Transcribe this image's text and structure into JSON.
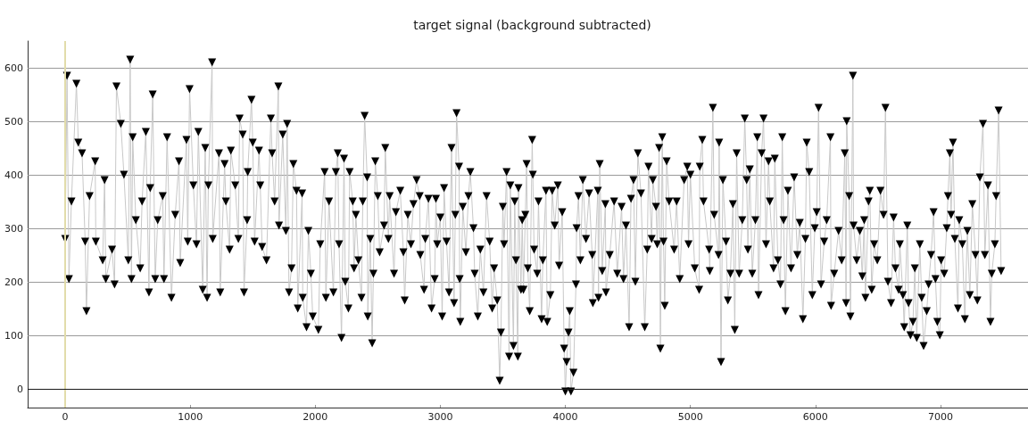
{
  "chart_data": {
    "type": "line",
    "title": "target signal (background subtracted)",
    "x": [
      0,
      15,
      30,
      50,
      90,
      105,
      135,
      160,
      170,
      195,
      240,
      245,
      300,
      315,
      325,
      375,
      395,
      410,
      445,
      470,
      505,
      520,
      530,
      540,
      565,
      600,
      615,
      645,
      670,
      680,
      700,
      720,
      740,
      780,
      790,
      815,
      850,
      880,
      910,
      920,
      970,
      980,
      995,
      1025,
      1050,
      1065,
      1100,
      1120,
      1135,
      1145,
      1175,
      1180,
      1230,
      1240,
      1275,
      1285,
      1315,
      1325,
      1360,
      1385,
      1395,
      1420,
      1430,
      1455,
      1460,
      1490,
      1500,
      1515,
      1550,
      1560,
      1575,
      1610,
      1645,
      1655,
      1675,
      1705,
      1710,
      1740,
      1765,
      1775,
      1790,
      1810,
      1825,
      1850,
      1860,
      1895,
      1900,
      1930,
      1945,
      1965,
      1980,
      2025,
      2040,
      2075,
      2085,
      2110,
      2145,
      2165,
      2180,
      2190,
      2210,
      2230,
      2240,
      2265,
      2275,
      2300,
      2310,
      2325,
      2345,
      2370,
      2380,
      2395,
      2415,
      2420,
      2440,
      2455,
      2465,
      2480,
      2500,
      2515,
      2550,
      2560,
      2585,
      2595,
      2630,
      2645,
      2680,
      2705,
      2715,
      2740,
      2765,
      2785,
      2810,
      2835,
      2840,
      2870,
      2880,
      2905,
      2930,
      2955,
      2965,
      2975,
      3000,
      3015,
      3030,
      3050,
      3070,
      3090,
      3110,
      3120,
      3130,
      3150,
      3155,
      3160,
      3180,
      3205,
      3225,
      3240,
      3265,
      3275,
      3300,
      3320,
      3345,
      3370,
      3395,
      3415,
      3430,
      3455,
      3475,
      3485,
      3500,
      3510,
      3530,
      3550,
      3560,
      3585,
      3595,
      3605,
      3620,
      3625,
      3645,
      3655,
      3665,
      3680,
      3690,
      3700,
      3715,
      3735,
      3740,
      3750,
      3775,
      3785,
      3810,
      3820,
      3845,
      3855,
      3880,
      3895,
      3915,
      3940,
      3950,
      3975,
      3990,
      4000,
      4010,
      4025,
      4035,
      4045,
      4065,
      4085,
      4090,
      4105,
      4120,
      4140,
      4165,
      4190,
      4215,
      4220,
      4260,
      4265,
      4275,
      4295,
      4320,
      4325,
      4355,
      4390,
      4415,
      4450,
      4465,
      4485,
      4510,
      4525,
      4545,
      4560,
      4580,
      4605,
      4635,
      4655,
      4665,
      4690,
      4700,
      4725,
      4735,
      4750,
      4760,
      4775,
      4785,
      4795,
      4810,
      4830,
      4870,
      4890,
      4915,
      4950,
      4975,
      4985,
      5000,
      5035,
      5070,
      5075,
      5095,
      5105,
      5150,
      5155,
      5180,
      5190,
      5225,
      5230,
      5245,
      5260,
      5285,
      5300,
      5320,
      5340,
      5355,
      5370,
      5390,
      5415,
      5435,
      5450,
      5460,
      5475,
      5495,
      5520,
      5535,
      5545,
      5570,
      5585,
      5605,
      5625,
      5635,
      5665,
      5675,
      5700,
      5720,
      5735,
      5745,
      5760,
      5780,
      5805,
      5830,
      5855,
      5875,
      5900,
      5920,
      5930,
      5950,
      5975,
      5995,
      6010,
      6025,
      6045,
      6070,
      6090,
      6120,
      6125,
      6150,
      6185,
      6210,
      6235,
      6245,
      6250,
      6270,
      6280,
      6300,
      6305,
      6330,
      6355,
      6375,
      6390,
      6400,
      6425,
      6435,
      6450,
      6470,
      6495,
      6520,
      6545,
      6560,
      6580,
      6605,
      6625,
      6640,
      6665,
      6675,
      6700,
      6710,
      6735,
      6745,
      6760,
      6780,
      6795,
      6810,
      6835,
      6850,
      6865,
      6890,
      6905,
      6925,
      6945,
      6960,
      6975,
      6995,
      7005,
      7030,
      7050,
      7060,
      7075,
      7085,
      7100,
      7115,
      7140,
      7150,
      7175,
      7195,
      7215,
      7235,
      7255,
      7280,
      7295,
      7315,
      7340,
      7355,
      7380,
      7400,
      7410,
      7435,
      7445,
      7465,
      7485
    ],
    "series": [
      {
        "color": "#c8c8c8",
        "marker": "none",
        "values": [
          280,
          585,
          205,
          350,
          570,
          460,
          440,
          275,
          145,
          360,
          425,
          275,
          240,
          390,
          205,
          260,
          195,
          565,
          495,
          400,
          240,
          615,
          205,
          470,
          315,
          225,
          350,
          480,
          180,
          375,
          550,
          205,
          315,
          360,
          205,
          470,
          170,
          325,
          425,
          235,
          465,
          275,
          560,
          380,
          270,
          480,
          185,
          450,
          170,
          380,
          610,
          280,
          440,
          180,
          420,
          350,
          260,
          445,
          380,
          280,
          505,
          475,
          180,
          315,
          405,
          540,
          460,
          275,
          445,
          380,
          265,
          240,
          505,
          440,
          350,
          565,
          305,
          475,
          295,
          495,
          180,
          225,
          420,
          370,
          150,
          365,
          170,
          115,
          295,
          215,
          135,
          110,
          270,
          405,
          170,
          350,
          180,
          405,
          440,
          270,
          95,
          430,
          200,
          150,
          405,
          350,
          225,
          325,
          240,
          170,
          350,
          510,
          395,
          135,
          280,
          85,
          215,
          425,
          360,
          255,
          305,
          450,
          280,
          360,
          215,
          330,
          370,
          255,
          165,
          325,
          270,
          345,
          390,
          360,
          250,
          185,
          280,
          355,
          150,
          205,
          355,
          270,
          320,
          135,
          375,
          275,
          180,
          450,
          160,
          325,
          515,
          415,
          205,
          125,
          340,
          255,
          360,
          405,
          300,
          215,
          135,
          260,
          180,
          360,
          275,
          150,
          225,
          165,
          15,
          105,
          340,
          270,
          405,
          60,
          380,
          80,
          350,
          240,
          60,
          375,
          185,
          315,
          185,
          325,
          420,
          225,
          145,
          465,
          400,
          260,
          215,
          350,
          130,
          240,
          370,
          125,
          175,
          370,
          305,
          380,
          230,
          330,
          75,
          -5,
          50,
          105,
          145,
          -5,
          30,
          195,
          300,
          360,
          240,
          390,
          280,
          365,
          250,
          160,
          370,
          170,
          420,
          220,
          345,
          180,
          250,
          350,
          215,
          340,
          205,
          305,
          115,
          355,
          390,
          200,
          440,
          365,
          115,
          260,
          415,
          280,
          390,
          340,
          270,
          450,
          75,
          470,
          275,
          155,
          425,
          350,
          260,
          350,
          205,
          390,
          415,
          270,
          400,
          225,
          185,
          415,
          465,
          350,
          260,
          220,
          525,
          325,
          250,
          460,
          50,
          390,
          275,
          165,
          215,
          345,
          110,
          440,
          215,
          315,
          505,
          390,
          260,
          410,
          215,
          315,
          470,
          175,
          440,
          505,
          270,
          425,
          350,
          225,
          430,
          240,
          195,
          470,
          315,
          145,
          370,
          225,
          395,
          250,
          310,
          130,
          280,
          460,
          405,
          175,
          300,
          330,
          525,
          195,
          275,
          315,
          470,
          155,
          215,
          295,
          240,
          440,
          160,
          500,
          360,
          135,
          585,
          305,
          240,
          295,
          210,
          315,
          170,
          350,
          370,
          185,
          270,
          240,
          370,
          325,
          525,
          200,
          160,
          320,
          225,
          185,
          270,
          175,
          115,
          305,
          160,
          100,
          125,
          225,
          95,
          270,
          170,
          80,
          145,
          195,
          250,
          330,
          205,
          125,
          100,
          240,
          215,
          300,
          360,
          440,
          325,
          460,
          280,
          150,
          315,
          270,
          130,
          295,
          175,
          345,
          250,
          165,
          395,
          495,
          250,
          380,
          125,
          215,
          270,
          360,
          520,
          220
        ]
      },
      {
        "type": "scatter",
        "color": "#000000",
        "marker": "triangle",
        "values": [
          280,
          585,
          205,
          350,
          570,
          460,
          440,
          275,
          145,
          360,
          425,
          275,
          240,
          390,
          205,
          260,
          195,
          565,
          495,
          400,
          240,
          615,
          205,
          470,
          315,
          225,
          350,
          480,
          180,
          375,
          550,
          205,
          315,
          360,
          205,
          470,
          170,
          325,
          425,
          235,
          465,
          275,
          560,
          380,
          270,
          480,
          185,
          450,
          170,
          380,
          610,
          280,
          440,
          180,
          420,
          350,
          260,
          445,
          380,
          280,
          505,
          475,
          180,
          315,
          405,
          540,
          460,
          275,
          445,
          380,
          265,
          240,
          505,
          440,
          350,
          565,
          305,
          475,
          295,
          495,
          180,
          225,
          420,
          370,
          150,
          365,
          170,
          115,
          295,
          215,
          135,
          110,
          270,
          405,
          170,
          350,
          180,
          405,
          440,
          270,
          95,
          430,
          200,
          150,
          405,
          350,
          225,
          325,
          240,
          170,
          350,
          510,
          395,
          135,
          280,
          85,
          215,
          425,
          360,
          255,
          305,
          450,
          280,
          360,
          215,
          330,
          370,
          255,
          165,
          325,
          270,
          345,
          390,
          360,
          250,
          185,
          280,
          355,
          150,
          205,
          355,
          270,
          320,
          135,
          375,
          275,
          180,
          450,
          160,
          325,
          515,
          415,
          205,
          125,
          340,
          255,
          360,
          405,
          300,
          215,
          135,
          260,
          180,
          360,
          275,
          150,
          225,
          165,
          15,
          105,
          340,
          270,
          405,
          60,
          380,
          80,
          350,
          240,
          60,
          375,
          185,
          315,
          185,
          325,
          420,
          225,
          145,
          465,
          400,
          260,
          215,
          350,
          130,
          240,
          370,
          125,
          175,
          370,
          305,
          380,
          230,
          330,
          75,
          -5,
          50,
          105,
          145,
          -5,
          30,
          195,
          300,
          360,
          240,
          390,
          280,
          365,
          250,
          160,
          370,
          170,
          420,
          220,
          345,
          180,
          250,
          350,
          215,
          340,
          205,
          305,
          115,
          355,
          390,
          200,
          440,
          365,
          115,
          260,
          415,
          280,
          390,
          340,
          270,
          450,
          75,
          470,
          275,
          155,
          425,
          350,
          260,
          350,
          205,
          390,
          415,
          270,
          400,
          225,
          185,
          415,
          465,
          350,
          260,
          220,
          525,
          325,
          250,
          460,
          50,
          390,
          275,
          165,
          215,
          345,
          110,
          440,
          215,
          315,
          505,
          390,
          260,
          410,
          215,
          315,
          470,
          175,
          440,
          505,
          270,
          425,
          350,
          225,
          430,
          240,
          195,
          470,
          315,
          145,
          370,
          225,
          395,
          250,
          310,
          130,
          280,
          460,
          405,
          175,
          300,
          330,
          525,
          195,
          275,
          315,
          470,
          155,
          215,
          295,
          240,
          440,
          160,
          500,
          360,
          135,
          585,
          305,
          240,
          295,
          210,
          315,
          170,
          350,
          370,
          185,
          270,
          240,
          370,
          325,
          525,
          200,
          160,
          320,
          225,
          185,
          270,
          175,
          115,
          305,
          160,
          100,
          125,
          225,
          95,
          270,
          170,
          80,
          145,
          195,
          250,
          330,
          205,
          125,
          100,
          240,
          215,
          300,
          360,
          440,
          325,
          460,
          280,
          150,
          315,
          270,
          130,
          295,
          175,
          345,
          250,
          165,
          395,
          495,
          250,
          380,
          125,
          215,
          270,
          360,
          520,
          220
        ]
      }
    ],
    "xlim": [
      -300,
      7700
    ],
    "ylim": [
      -35,
      650
    ],
    "xticks": [
      0,
      1000,
      2000,
      3000,
      4000,
      5000,
      6000,
      7000
    ],
    "yticks": [
      0,
      100,
      200,
      300,
      400,
      500,
      600
    ],
    "grid": "y",
    "ref_lines": [
      {
        "axis": "x",
        "value": 0,
        "color": "#e2dcaa"
      },
      {
        "axis": "y",
        "value": 0,
        "color": "#1a1a1a"
      }
    ]
  }
}
